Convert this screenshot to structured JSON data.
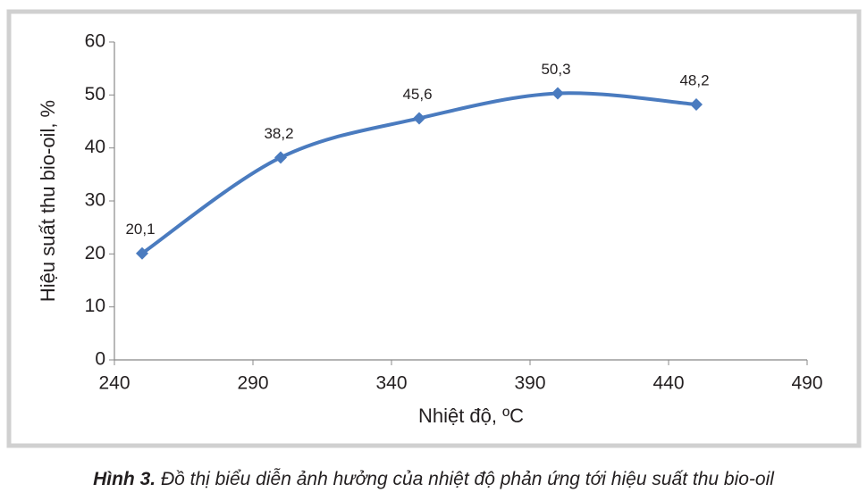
{
  "chart_data": {
    "type": "line",
    "x": [
      250,
      300,
      350,
      400,
      450
    ],
    "series": [
      {
        "color": "#4a7bbf",
        "values": [
          20.1,
          38.2,
          45.6,
          50.3,
          48.2
        ],
        "value_labels": [
          "20,1",
          "38,2",
          "45,6",
          "50,3",
          "48,2"
        ]
      }
    ],
    "xlim": [
      240,
      490
    ],
    "xticks": [
      240,
      290,
      340,
      390,
      440,
      490
    ],
    "ylim": [
      0,
      60
    ],
    "yticks": [
      0,
      10,
      20,
      30,
      40,
      50,
      60
    ],
    "xlabel": "Nhiệt độ, ºC",
    "ylabel": "Hiệu suất thu bio-oil, %",
    "caption_label": "Hình 3.",
    "caption": "Đồ thị biểu diễn ảnh hưởng của nhiệt độ phản ứng tới hiệu suất thu bio-oil"
  }
}
